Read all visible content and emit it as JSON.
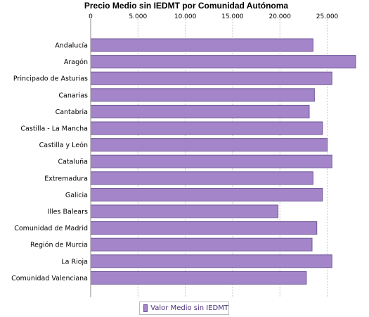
{
  "chart_data": {
    "type": "bar",
    "orientation": "horizontal",
    "title": "Precio Medio sin IEDMT por Comunidad Autónoma",
    "categories": [
      "Andalucía",
      "Aragón",
      "Principado de Asturias",
      "Canarias",
      "Cantabria",
      "Castilla - La Mancha",
      "Castilla y León",
      "Cataluña",
      "Extremadura",
      "Galicia",
      "Illes Balears",
      "Comunidad de Madrid",
      "Región de Murcia",
      "La Rioja",
      "Comunidad Valenciana"
    ],
    "series": [
      {
        "name": "Valor Medio sin IEDMT",
        "color": "#a485c9",
        "values": [
          23500,
          28000,
          25500,
          23650,
          23100,
          24500,
          25000,
          25500,
          23500,
          24500,
          19800,
          23900,
          23400,
          25500,
          22800
        ]
      }
    ],
    "xlim": [
      0,
      28600
    ],
    "ticks": [
      "0",
      "5.000",
      "10.000",
      "15.000",
      "20.000",
      "25.000"
    ],
    "tick_values": [
      0,
      5000,
      10000,
      15000,
      20000,
      25000
    ],
    "xlabel": "",
    "ylabel": "",
    "grid": true,
    "legend_position": "bottom"
  }
}
